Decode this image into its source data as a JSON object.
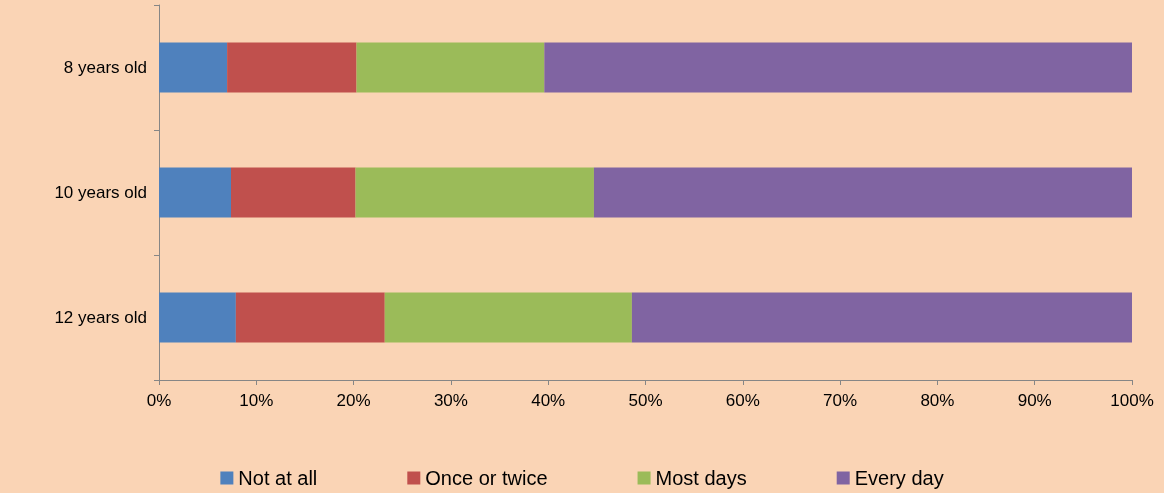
{
  "chart_data": {
    "type": "bar",
    "orientation": "horizontal",
    "stacked": true,
    "categories": [
      "8 years old",
      "10 years old",
      "12 years old"
    ],
    "series": [
      {
        "name": "Not at all",
        "color": "#4f81bd",
        "values": [
          7.0,
          7.4,
          7.9
        ]
      },
      {
        "name": "Once or twice",
        "color": "#c0504d",
        "values": [
          13.3,
          12.8,
          15.3
        ]
      },
      {
        "name": "Most days",
        "color": "#9bbb59",
        "values": [
          19.3,
          24.5,
          25.4
        ]
      },
      {
        "name": "Every day",
        "color": "#8064a2",
        "values": [
          60.4,
          55.3,
          51.4
        ]
      }
    ],
    "xlim": [
      0,
      100
    ],
    "xticks": [
      {
        "value": 0,
        "label": "0%"
      },
      {
        "value": 10,
        "label": "10%"
      },
      {
        "value": 20,
        "label": "20%"
      },
      {
        "value": 30,
        "label": "30%"
      },
      {
        "value": 40,
        "label": "40%"
      },
      {
        "value": 50,
        "label": "50%"
      },
      {
        "value": 60,
        "label": "60%"
      },
      {
        "value": 70,
        "label": "70%"
      },
      {
        "value": 80,
        "label": "80%"
      },
      {
        "value": 90,
        "label": "90%"
      },
      {
        "value": 100,
        "label": "100%"
      }
    ],
    "grid": false,
    "legend": "bottom"
  }
}
